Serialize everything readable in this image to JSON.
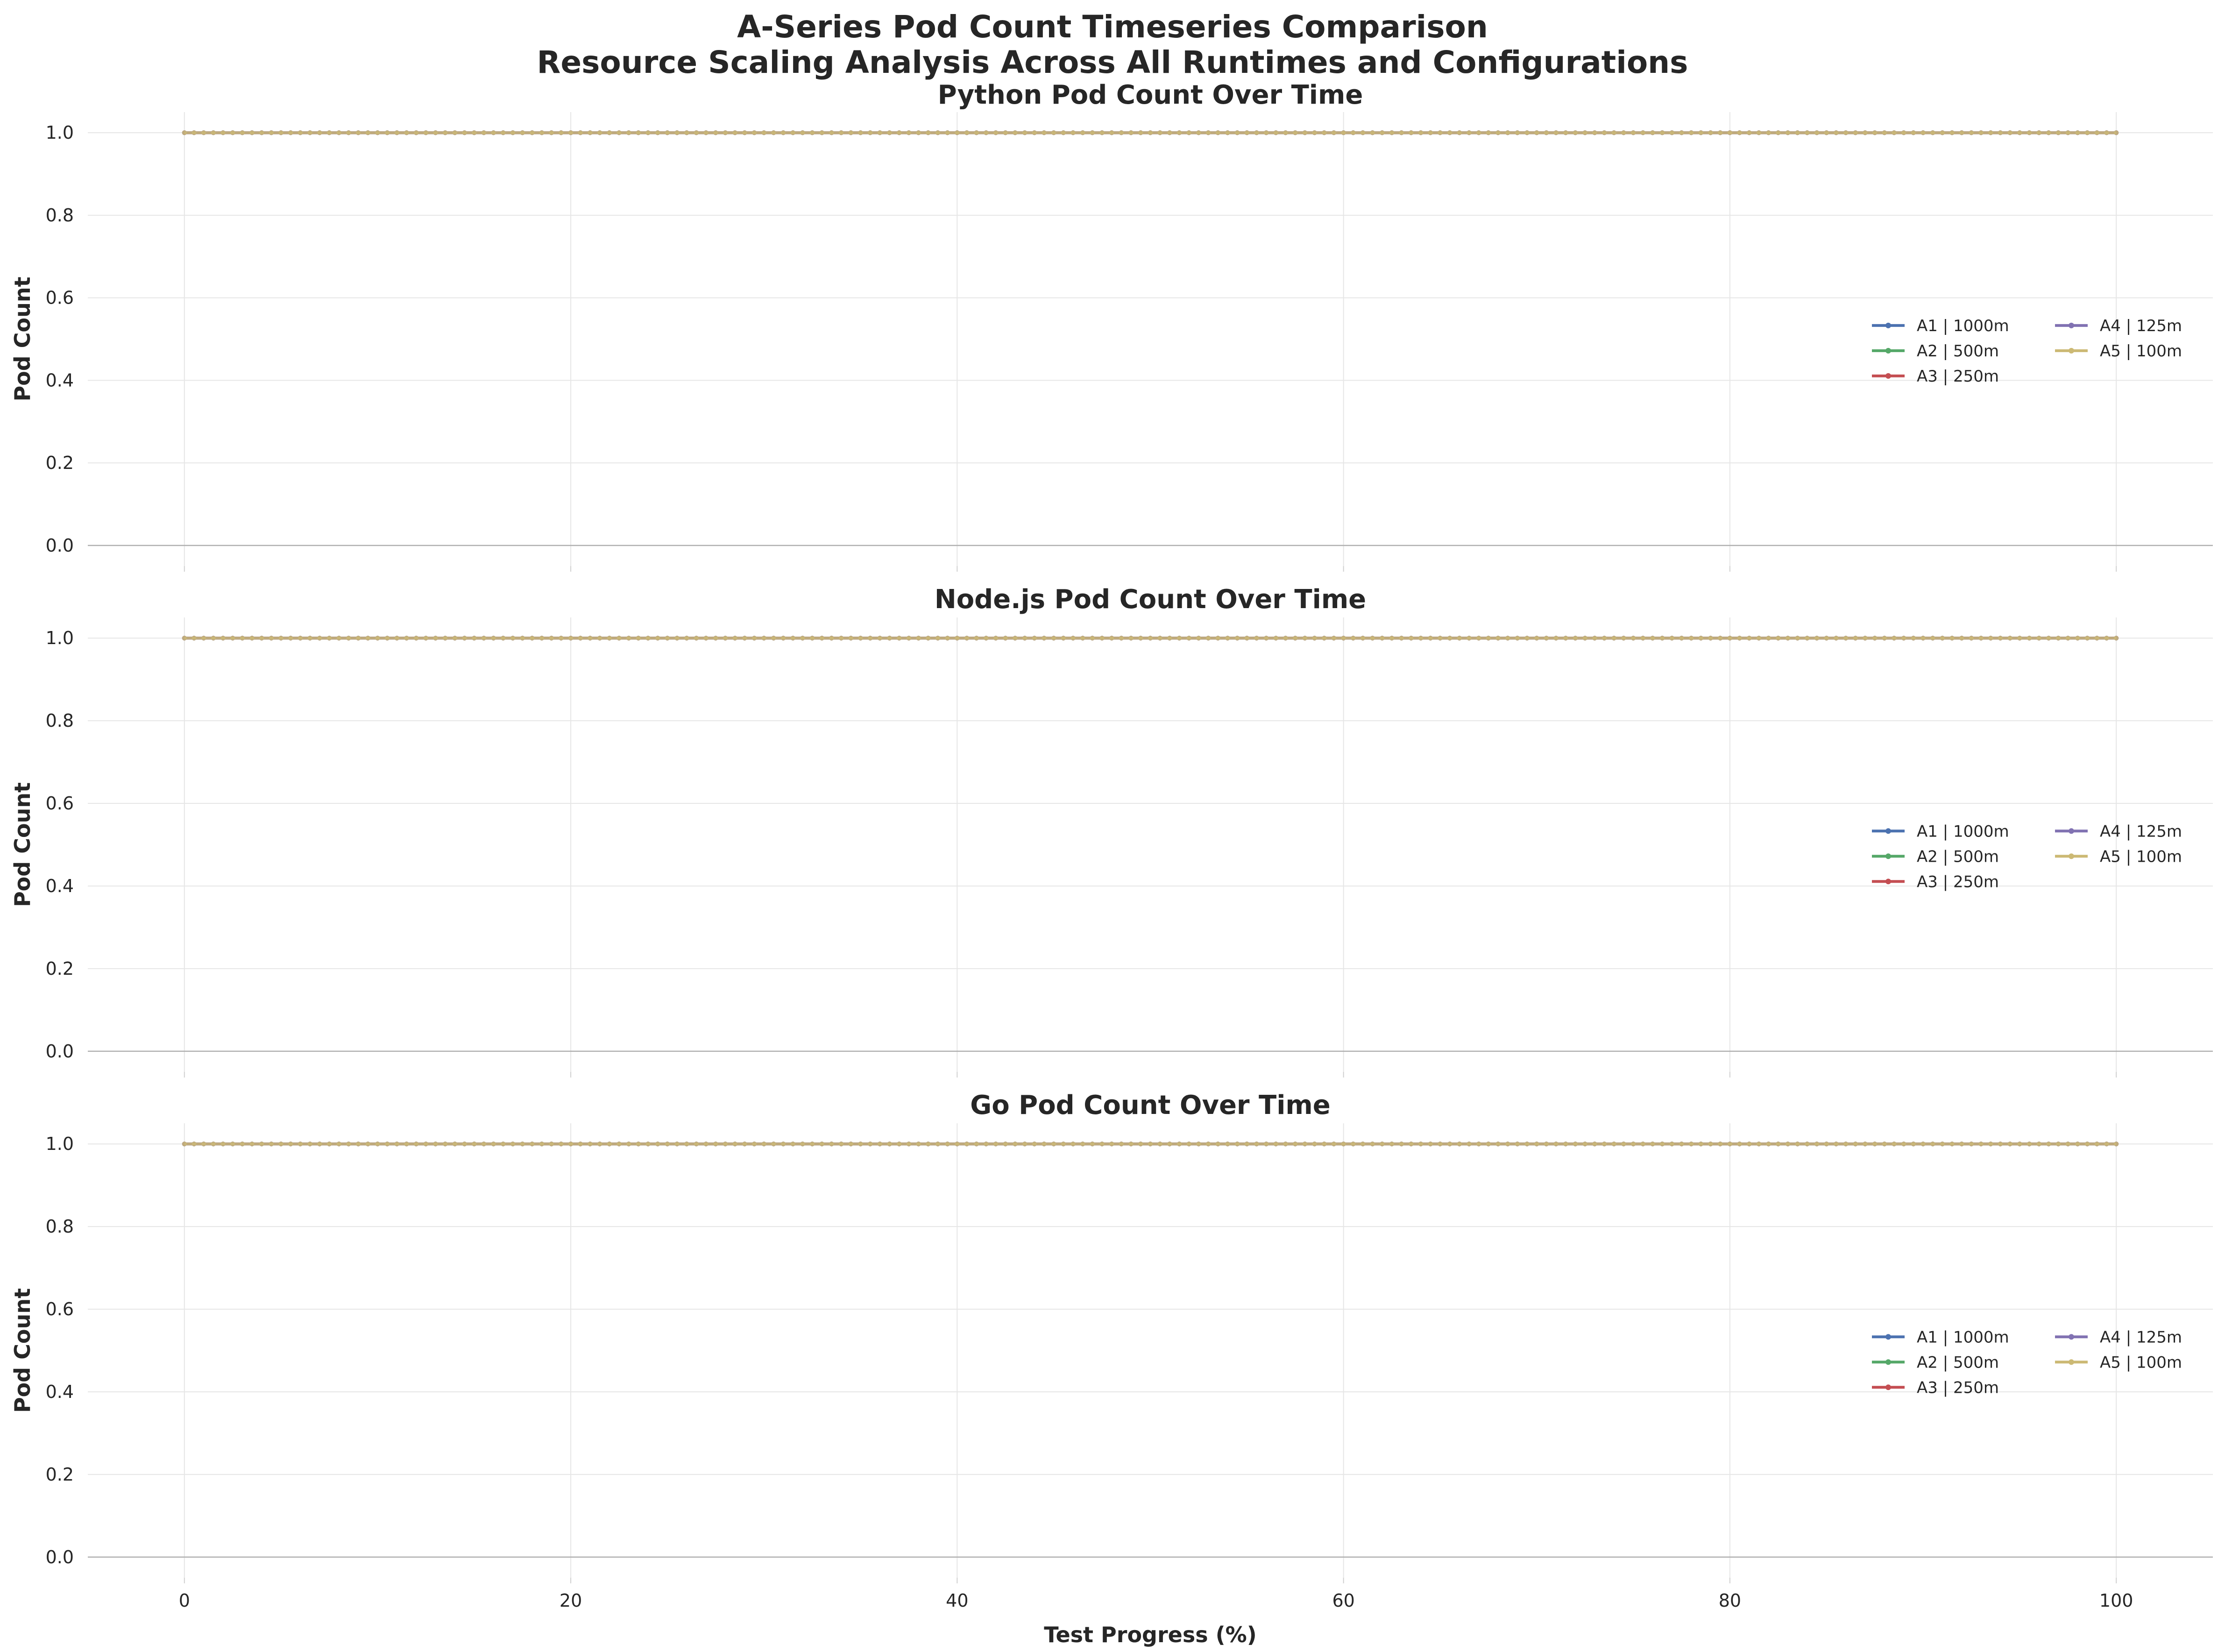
{
  "figure": {
    "title_line1": "A-Series Pod Count Timeseries Comparison",
    "title_line2": "Resource Scaling Analysis Across All Runtimes and Configurations"
  },
  "chart_data": [
    {
      "type": "line",
      "title": "Python Pod Count Over Time",
      "xlabel": "",
      "ylabel": "Pod Count",
      "xlim": [
        -5,
        105
      ],
      "ylim": [
        -0.05,
        1.05
      ],
      "xticks": [
        0,
        20,
        40,
        60,
        80,
        100
      ],
      "yticks": [
        "0.0",
        "0.2",
        "0.4",
        "0.6",
        "0.8",
        "1.0"
      ],
      "grid": true,
      "legend_position": "center-right",
      "x": {
        "start": 0,
        "end": 100,
        "step": 0.5
      },
      "series": [
        {
          "name": "A1 | 1000m",
          "constant_value": 1.0,
          "color": "#4c72b0"
        },
        {
          "name": "A2 | 500m",
          "constant_value": 1.0,
          "color": "#55a868"
        },
        {
          "name": "A3 | 250m",
          "constant_value": 1.0,
          "color": "#c44e52"
        },
        {
          "name": "A4 | 125m",
          "constant_value": 1.0,
          "color": "#8172b2"
        },
        {
          "name": "A5 | 100m",
          "constant_value": 1.0,
          "color": "#ccb974"
        }
      ]
    },
    {
      "type": "line",
      "title": "Node.js Pod Count Over Time",
      "xlabel": "",
      "ylabel": "Pod Count",
      "xlim": [
        -5,
        105
      ],
      "ylim": [
        -0.05,
        1.05
      ],
      "xticks": [
        0,
        20,
        40,
        60,
        80,
        100
      ],
      "yticks": [
        "0.0",
        "0.2",
        "0.4",
        "0.6",
        "0.8",
        "1.0"
      ],
      "grid": true,
      "legend_position": "center-right",
      "x": {
        "start": 0,
        "end": 100,
        "step": 0.5
      },
      "series": [
        {
          "name": "A1 | 1000m",
          "constant_value": 1.0,
          "color": "#4c72b0"
        },
        {
          "name": "A2 | 500m",
          "constant_value": 1.0,
          "color": "#55a868"
        },
        {
          "name": "A3 | 250m",
          "constant_value": 1.0,
          "color": "#c44e52"
        },
        {
          "name": "A4 | 125m",
          "constant_value": 1.0,
          "color": "#8172b2"
        },
        {
          "name": "A5 | 100m",
          "constant_value": 1.0,
          "color": "#ccb974"
        }
      ]
    },
    {
      "type": "line",
      "title": "Go Pod Count Over Time",
      "xlabel": "Test Progress (%)",
      "ylabel": "Pod Count",
      "xlim": [
        -5,
        105
      ],
      "ylim": [
        -0.05,
        1.05
      ],
      "xticks": [
        0,
        20,
        40,
        60,
        80,
        100
      ],
      "yticks": [
        "0.0",
        "0.2",
        "0.4",
        "0.6",
        "0.8",
        "1.0"
      ],
      "grid": true,
      "legend_position": "center-right",
      "x": {
        "start": 0,
        "end": 100,
        "step": 0.5
      },
      "series": [
        {
          "name": "A1 | 1000m",
          "constant_value": 1.0,
          "color": "#4c72b0"
        },
        {
          "name": "A2 | 500m",
          "constant_value": 1.0,
          "color": "#55a868"
        },
        {
          "name": "A3 | 250m",
          "constant_value": 1.0,
          "color": "#c44e52"
        },
        {
          "name": "A4 | 125m",
          "constant_value": 1.0,
          "color": "#8172b2"
        },
        {
          "name": "A5 | 100m",
          "constant_value": 1.0,
          "color": "#ccb974"
        }
      ]
    }
  ]
}
